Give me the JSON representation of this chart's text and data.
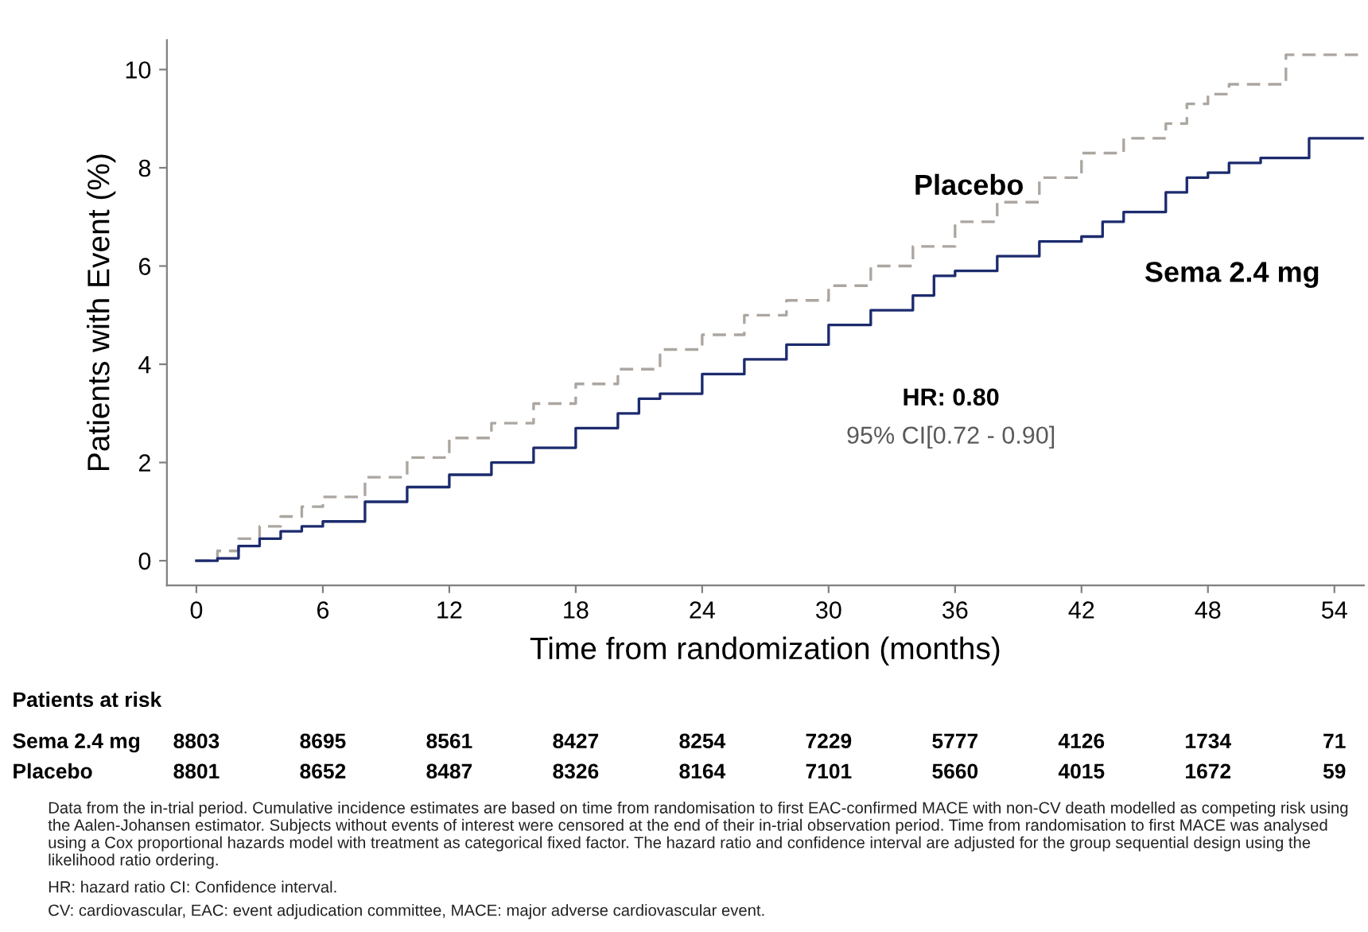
{
  "chart_data": {
    "type": "step",
    "xlabel": "Time from randomization (months)",
    "ylabel": "Patients with Event (%)",
    "xlim": [
      -1.4,
      55.4
    ],
    "xticks": [
      0,
      6,
      12,
      18,
      24,
      30,
      36,
      42,
      48,
      54
    ],
    "ylim": [
      -0.5,
      10.6
    ],
    "yticks": [
      0,
      2,
      4,
      6,
      8,
      10
    ],
    "grid": false,
    "legend": false,
    "marker": "none",
    "series": [
      {
        "name": "Placebo",
        "color": "#aca6a1",
        "line_style": "dashed",
        "x": [
          0,
          1,
          2,
          3,
          4,
          5,
          6,
          8,
          10,
          12,
          14,
          16,
          18,
          20,
          22,
          24,
          26,
          28,
          30,
          32,
          34,
          36,
          38,
          40,
          42,
          44,
          46,
          47,
          48,
          49,
          51.7,
          55.4
        ],
        "values": [
          0,
          0.2,
          0.45,
          0.7,
          0.9,
          1.1,
          1.3,
          1.7,
          2.1,
          2.5,
          2.8,
          3.2,
          3.6,
          3.9,
          4.3,
          4.6,
          5.0,
          5.3,
          5.6,
          6.0,
          6.4,
          6.9,
          7.3,
          7.8,
          8.3,
          8.6,
          8.9,
          9.3,
          9.5,
          9.7,
          10.3,
          10.3
        ]
      },
      {
        "name": "Sema 2.4 mg",
        "color": "#1c2b6e",
        "line_style": "solid",
        "x": [
          0,
          1,
          2,
          3,
          4,
          5,
          6,
          8,
          10,
          12,
          14,
          16,
          18,
          20,
          21,
          22,
          24,
          26,
          28,
          30,
          32,
          34,
          35,
          36,
          38,
          40,
          42,
          43,
          44,
          46,
          47,
          48,
          49,
          50.5,
          52.8,
          55.4
        ],
        "values": [
          0,
          0.05,
          0.3,
          0.45,
          0.6,
          0.7,
          0.8,
          1.2,
          1.5,
          1.75,
          2.0,
          2.3,
          2.7,
          3.0,
          3.3,
          3.4,
          3.8,
          4.1,
          4.4,
          4.8,
          5.1,
          5.4,
          5.8,
          5.9,
          6.2,
          6.5,
          6.6,
          6.9,
          7.1,
          7.5,
          7.8,
          7.9,
          8.1,
          8.2,
          8.6,
          8.6
        ]
      }
    ],
    "annotations": [
      "HR: 0.80",
      "95% CI[0.72 - 0.90]",
      "Patients at risk",
      "Sema 2.4 mg\t8803\t8695\t8561\t8427\t8254\t7229\t5777\t4126\t1734\t71",
      "Placebo\t8801\t8652\t8487\t8326\t8164\t7101\t5660\t4015\t1672\t59",
      "Data from the in-trial period. Cumulative incidence estimates are based on time from randomisation to first EAC-confirmed MACE with non-CV death modelled as competing risk using the Aalen-Johansen estimator. Subjects without events of interest were censored at the end of their in-trial observation period. Time from randomisation to first MACE was analysed using a Cox proportional hazards model with treatment as categorical fixed factor. The hazard ratio and confidence interval are adjusted for the group sequential design using the likelihood ratio ordering.",
      "HR: hazard ratio CI: Confidence interval.",
      "CV: cardiovascular, EAC: event adjudication committee, MACE: major adverse cardiovascular event."
    ]
  }
}
